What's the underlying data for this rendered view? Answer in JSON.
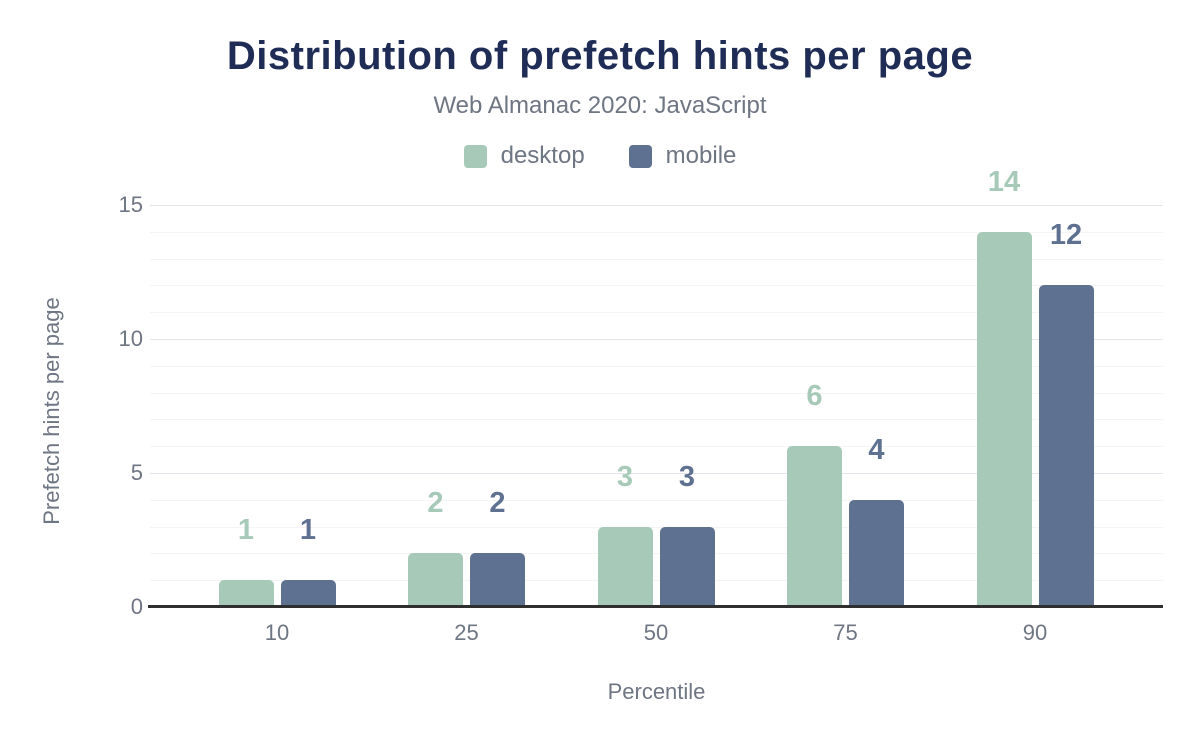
{
  "chart_data": {
    "type": "bar",
    "title": "Distribution of prefetch hints per page",
    "subtitle": "Web Almanac 2020: JavaScript",
    "xlabel": "Percentile",
    "ylabel": "Prefetch hints per page",
    "categories": [
      "10",
      "25",
      "50",
      "75",
      "90"
    ],
    "series": [
      {
        "name": "desktop",
        "color": "#a7c9b8",
        "values": [
          1,
          2,
          3,
          6,
          14
        ]
      },
      {
        "name": "mobile",
        "color": "#5f7191",
        "values": [
          1,
          2,
          3,
          4,
          12
        ]
      }
    ],
    "ylim": [
      0,
      15
    ],
    "yticks": [
      0,
      5,
      10,
      15
    ],
    "minor_grid_step": 1,
    "grid": "horizontal",
    "legend_position": "top",
    "data_labels": true
  },
  "colors": {
    "background": "#ffffff",
    "title": "#1f2c55",
    "subtitle": "#6e7583",
    "tick_labels": "#6e7583",
    "axis_line": "#2f2f2f",
    "gridline_major": "#e4e4ea",
    "gridline_minor": "#f4f4f7"
  }
}
